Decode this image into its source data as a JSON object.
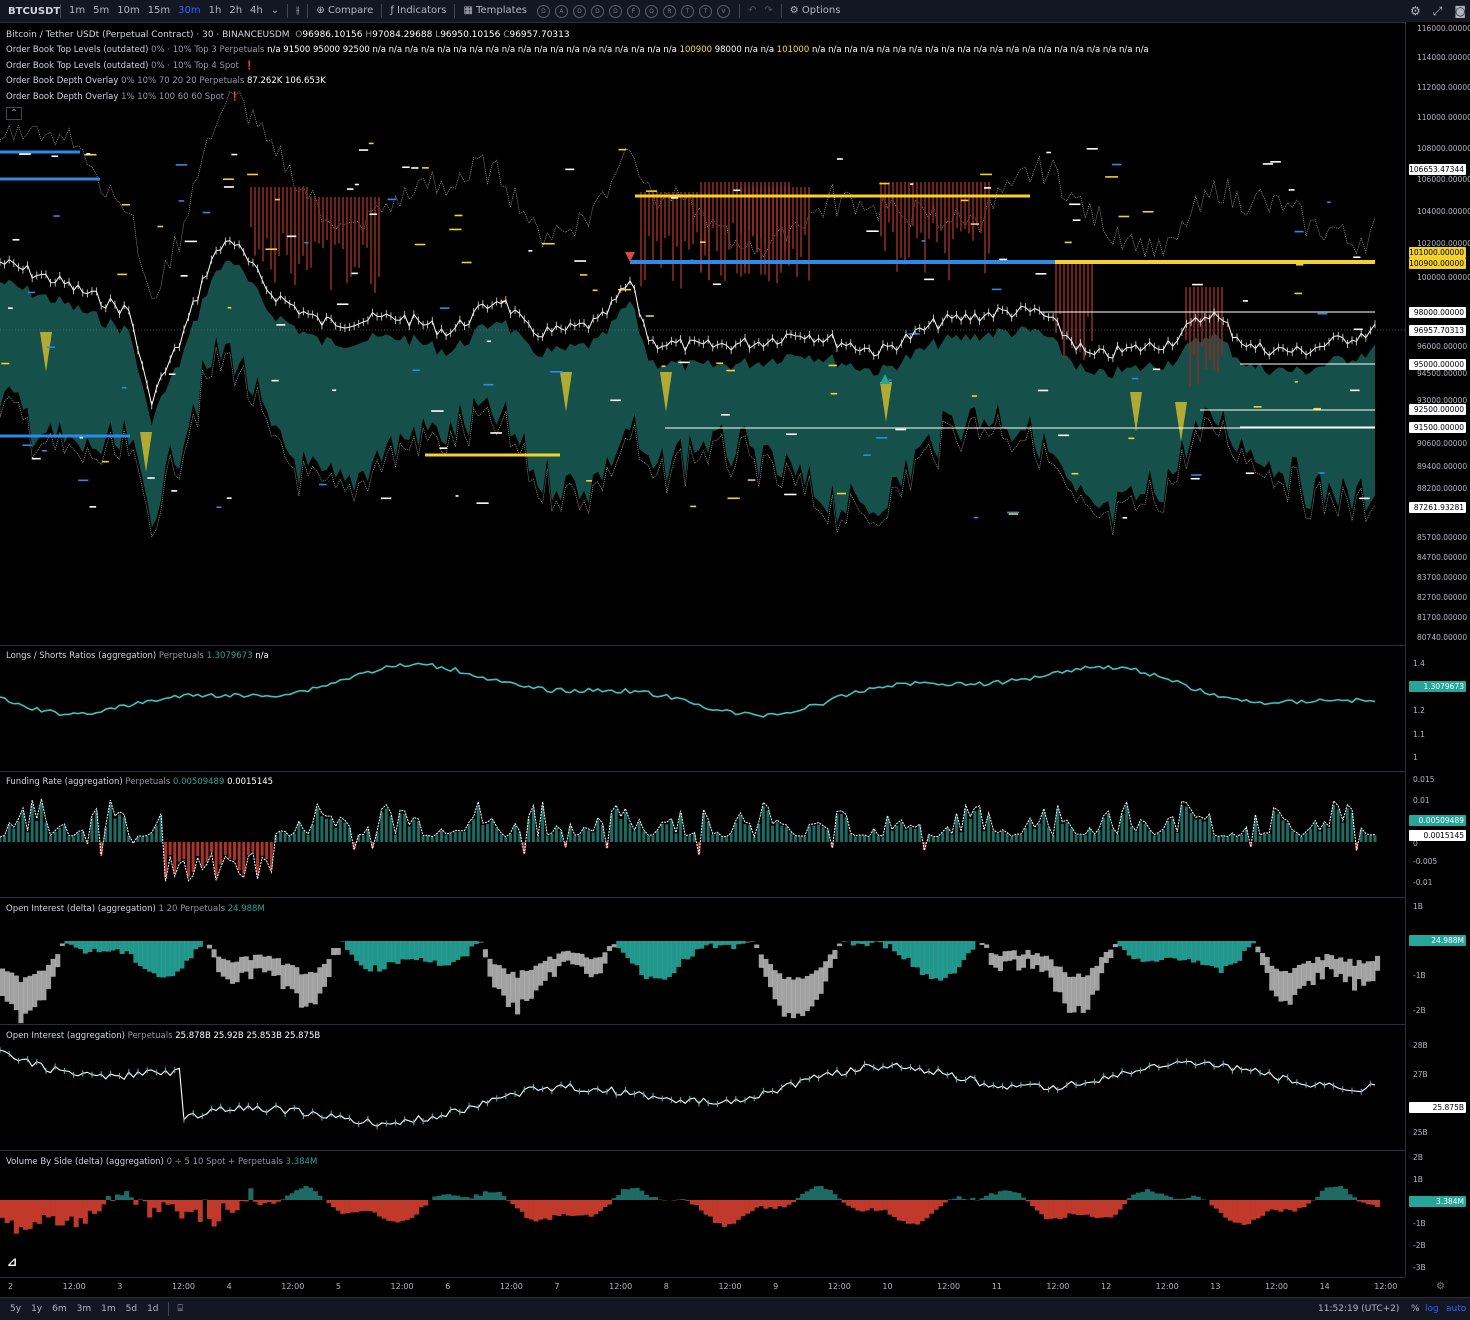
{
  "toolbar": {
    "symbol": "BTCUSDT",
    "intervals": [
      "1m",
      "5m",
      "10m",
      "15m",
      "30m",
      "1h",
      "2h",
      "4h"
    ],
    "active_interval": "30m",
    "compare": "Compare",
    "indicators": "Indicators",
    "templates": "Templates",
    "hotkeys": [
      "D",
      "A",
      "D",
      "D",
      "D",
      "F",
      "Q",
      "R",
      "T",
      "T",
      "V"
    ],
    "options": "Options"
  },
  "main_legend": {
    "title": "Bitcoin / Tether USDt (Perpetual Contract) · 30 · BINANCEUSDM",
    "o_label": "O",
    "o": "96986.10156",
    "h_label": "H",
    "h": "97084.29688",
    "l_label": "L",
    "l": "96950.10156",
    "c_label": "C",
    "c": "96957.70313",
    "ind1_name": "Order Book Top Levels (outdated)",
    "ind1_params": "0% · 10% Top 3 Perpetuals",
    "ind1_values": "n/a  91500  95000  92500  n/a  n/a  n/a  n/a  n/a  n/a  n/a  n/a  n/a  n/a  n/a  n/a  n/a  n/a  n/a  n/a  n/a  n/a  n/a",
    "ind1_y1": "100900",
    "ind1_mid": "98000  n/a  n/a",
    "ind1_y2": "101000",
    "ind1_tail": "n/a  n/a  n/a  n/a  n/a  n/a  n/a  n/a  n/a  n/a  n/a  n/a  n/a  n/a  n/a  n/a  n/a  n/a  n/a  n/a  n/a",
    "ind2_name": "Order Book Top Levels (outdated)",
    "ind2_params": "0% · 10% Top 4 Spot",
    "ind3_name": "Order Book Depth Overlay",
    "ind3_params": "0% 10% 70 20 20 Perpetuals",
    "ind3_values": "87.262K  106.653K",
    "ind4_name": "Order Book Depth Overlay",
    "ind4_params": "1% 10% 100 60 60 Spot"
  },
  "panes": {
    "ls": {
      "name": "Longs / Shorts Ratios (aggregation)",
      "params": "Perpetuals",
      "value": "1.3079673",
      "extra": "n/a"
    },
    "funding": {
      "name": "Funding Rate (aggregation)",
      "params": "Perpetuals",
      "value1": "0.00509489",
      "value2": "0.0015145"
    },
    "oi_delta": {
      "name": "Open Interest (delta) (aggregation)",
      "params": "1 20 Perpetuals",
      "value": "24.988M"
    },
    "oi": {
      "name": "Open Interest (aggregation)",
      "params": "Perpetuals",
      "values": "25.878B  25.92B  25.853B  25.875B"
    },
    "vol": {
      "name": "Volume By Side (delta) (aggregation)",
      "params": "0 ÷ 5 10 Spot + Perpetuals",
      "value": "3.384M"
    }
  },
  "price_axis": {
    "ticks": [
      "116000.00000",
      "114000.00000",
      "112000.00000",
      "110000.00000",
      "108000.00000",
      "106000.00000",
      "104000.00000",
      "102000.00000",
      "100000.00000",
      "96000.00000",
      "94500.00000",
      "93000.00000",
      "90600.00000",
      "89400.00000",
      "88200.00000",
      "85700.00000",
      "84700.00000",
      "83700.00000",
      "82700.00000",
      "81700.00000",
      "80740.00000"
    ],
    "labels": {
      "p106653": "106653.47344",
      "p101000": "101000.00000",
      "p100900": "100900.00000",
      "p98000": "98000.00000",
      "p96957": "96957.70313",
      "p95000": "95000.00000",
      "p92500": "92500.00000",
      "p91500": "91500.00000",
      "p87261": "87261.93281"
    }
  },
  "ls_axis": {
    "ticks": [
      "1.4",
      "1.2",
      "1.1",
      "1"
    ],
    "label": "1.3079673"
  },
  "funding_axis": {
    "ticks": [
      "0.015",
      "0.01",
      "0",
      "-0.005",
      "-0.01"
    ],
    "label1": "0.00509489",
    "label2": "0.0015145"
  },
  "oid_axis": {
    "ticks": [
      "1B",
      "-1B",
      "-2B"
    ],
    "label": "24.988M"
  },
  "oi_axis": {
    "ticks": [
      "28B",
      "27B",
      "25B"
    ],
    "label": "25.875B"
  },
  "vol_axis": {
    "ticks": [
      "2B",
      "1B",
      "-1B",
      "-2B",
      "-3B"
    ],
    "label": "3.384M"
  },
  "time_axis": [
    "2",
    "12:00",
    "3",
    "12:00",
    "4",
    "12:00",
    "5",
    "12:00",
    "6",
    "12:00",
    "7",
    "12:00",
    "8",
    "12:00",
    "9",
    "12:00",
    "10",
    "12:00",
    "11",
    "12:00",
    "12",
    "12:00",
    "13",
    "12:00",
    "14",
    "12:00"
  ],
  "bottom": {
    "ranges": [
      "5y",
      "1y",
      "6m",
      "3m",
      "1m",
      "5d",
      "1d"
    ],
    "clock": "11:52:19 (UTC+2)",
    "pct": "%",
    "log": "log",
    "auto": "auto"
  },
  "colors": {
    "teal": "#1e6b63",
    "teal_line": "#26a69a",
    "yellow": "#f5d22a",
    "blue": "#2a8ce6",
    "red": "#d84a3a",
    "grey": "#bdbdbd",
    "ls_line": "#3fc1c0"
  }
}
